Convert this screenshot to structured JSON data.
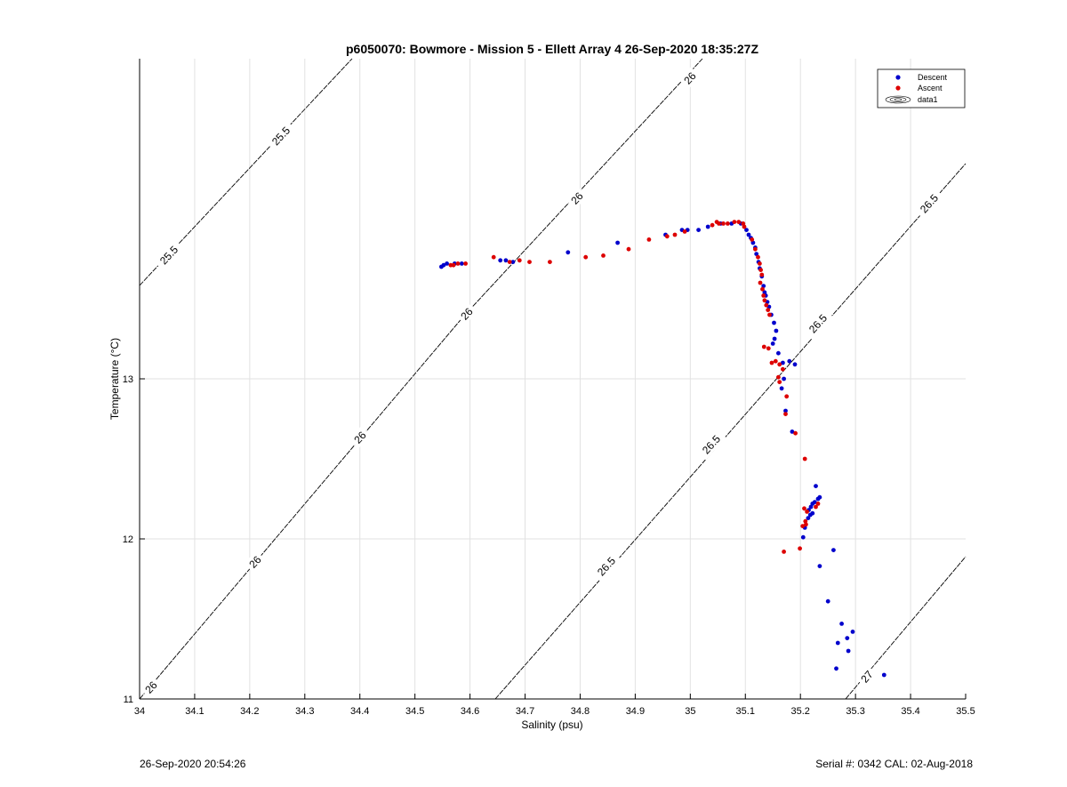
{
  "chart_data": {
    "type": "scatter",
    "title": "p6050070: Bowmore - Mission 5 - Ellett Array 4 26-Sep-2020 18:35:27Z",
    "xlabel": "Salinity (psu)",
    "ylabel": "Temperature (°C)",
    "xlim": [
      34,
      35.5
    ],
    "ylim": [
      11,
      15
    ],
    "x_ticks": [
      34,
      34.1,
      34.2,
      34.3,
      34.4,
      34.5,
      34.6,
      34.7,
      34.8,
      34.9,
      35,
      35.1,
      35.2,
      35.3,
      35.4,
      35.5
    ],
    "x_tick_labels": [
      "34",
      "34.1",
      "34.2",
      "34.3",
      "34.4",
      "34.5",
      "34.6",
      "34.7",
      "34.8",
      "34.9",
      "35",
      "35.1",
      "35.2",
      "35.3",
      "35.4",
      "35.5"
    ],
    "y_ticks": [
      11,
      12,
      13
    ],
    "y_tick_labels": [
      "11",
      "12",
      "13"
    ],
    "grid": true,
    "legend_position": "top-right",
    "legend": [
      {
        "label": "Descent",
        "color": "#0000cc",
        "marker": "dot"
      },
      {
        "label": "Ascent",
        "color": "#dd0000",
        "marker": "dot"
      },
      {
        "label": "data1",
        "color": "#000000",
        "marker": "contour"
      }
    ],
    "series": [
      {
        "name": "Descent",
        "color": "#0000cc",
        "points": [
          [
            34.548,
            13.7
          ],
          [
            34.552,
            13.71
          ],
          [
            34.558,
            13.72
          ],
          [
            34.572,
            13.72
          ],
          [
            34.585,
            13.72
          ],
          [
            34.655,
            13.74
          ],
          [
            34.665,
            13.74
          ],
          [
            34.678,
            13.73
          ],
          [
            34.778,
            13.79
          ],
          [
            34.868,
            13.85
          ],
          [
            34.955,
            13.9
          ],
          [
            34.985,
            13.93
          ],
          [
            34.995,
            13.93
          ],
          [
            35.015,
            13.93
          ],
          [
            35.032,
            13.95
          ],
          [
            35.055,
            13.97
          ],
          [
            35.075,
            13.97
          ],
          [
            35.092,
            13.97
          ],
          [
            35.102,
            13.93
          ],
          [
            35.106,
            13.9
          ],
          [
            35.11,
            13.88
          ],
          [
            35.114,
            13.85
          ],
          [
            35.118,
            13.82
          ],
          [
            35.12,
            13.78
          ],
          [
            35.124,
            13.73
          ],
          [
            35.126,
            13.69
          ],
          [
            35.13,
            13.64
          ],
          [
            35.133,
            13.58
          ],
          [
            35.135,
            13.54
          ],
          [
            35.137,
            13.52
          ],
          [
            35.14,
            13.48
          ],
          [
            35.143,
            13.45
          ],
          [
            35.147,
            13.4
          ],
          [
            35.152,
            13.35
          ],
          [
            35.156,
            13.3
          ],
          [
            35.153,
            13.25
          ],
          [
            35.15,
            13.22
          ],
          [
            35.16,
            13.16
          ],
          [
            35.168,
            13.1
          ],
          [
            35.18,
            13.11
          ],
          [
            35.19,
            13.09
          ],
          [
            35.17,
            13.0
          ],
          [
            35.166,
            12.94
          ],
          [
            35.173,
            12.8
          ],
          [
            35.185,
            12.67
          ],
          [
            35.228,
            12.33
          ],
          [
            35.235,
            12.26
          ],
          [
            35.232,
            12.25
          ],
          [
            35.226,
            12.23
          ],
          [
            35.222,
            12.22
          ],
          [
            35.219,
            12.2
          ],
          [
            35.215,
            12.18
          ],
          [
            35.222,
            12.16
          ],
          [
            35.218,
            12.15
          ],
          [
            35.214,
            12.13
          ],
          [
            35.208,
            12.07
          ],
          [
            35.205,
            12.01
          ],
          [
            35.26,
            11.93
          ],
          [
            35.235,
            11.83
          ],
          [
            35.25,
            11.61
          ],
          [
            35.275,
            11.47
          ],
          [
            35.295,
            11.42
          ],
          [
            35.285,
            11.38
          ],
          [
            35.268,
            11.35
          ],
          [
            35.287,
            11.3
          ],
          [
            35.265,
            11.19
          ],
          [
            35.352,
            11.15
          ]
        ]
      },
      {
        "name": "Ascent",
        "color": "#dd0000",
        "points": [
          [
            34.565,
            13.71
          ],
          [
            34.57,
            13.71
          ],
          [
            34.578,
            13.72
          ],
          [
            34.592,
            13.72
          ],
          [
            34.643,
            13.76
          ],
          [
            34.672,
            13.73
          ],
          [
            34.69,
            13.74
          ],
          [
            34.708,
            13.73
          ],
          [
            34.745,
            13.73
          ],
          [
            34.81,
            13.76
          ],
          [
            34.842,
            13.77
          ],
          [
            34.888,
            13.81
          ],
          [
            34.925,
            13.87
          ],
          [
            34.958,
            13.89
          ],
          [
            34.972,
            13.9
          ],
          [
            34.99,
            13.92
          ],
          [
            35.04,
            13.96
          ],
          [
            35.048,
            13.98
          ],
          [
            35.052,
            13.97
          ],
          [
            35.06,
            13.97
          ],
          [
            35.068,
            13.97
          ],
          [
            35.08,
            13.98
          ],
          [
            35.088,
            13.98
          ],
          [
            35.096,
            13.97
          ],
          [
            35.098,
            13.95
          ],
          [
            35.112,
            13.87
          ],
          [
            35.118,
            13.81
          ],
          [
            35.123,
            13.76
          ],
          [
            35.126,
            13.72
          ],
          [
            35.128,
            13.68
          ],
          [
            35.13,
            13.65
          ],
          [
            35.127,
            13.6
          ],
          [
            35.131,
            13.56
          ],
          [
            35.133,
            13.52
          ],
          [
            35.135,
            13.49
          ],
          [
            35.138,
            13.46
          ],
          [
            35.141,
            13.43
          ],
          [
            35.144,
            13.4
          ],
          [
            35.134,
            13.2
          ],
          [
            35.142,
            13.19
          ],
          [
            35.148,
            13.1
          ],
          [
            35.155,
            13.11
          ],
          [
            35.162,
            13.09
          ],
          [
            35.168,
            13.06
          ],
          [
            35.16,
            13.01
          ],
          [
            35.162,
            12.98
          ],
          [
            35.175,
            12.89
          ],
          [
            35.173,
            12.78
          ],
          [
            35.191,
            12.66
          ],
          [
            35.208,
            12.5
          ],
          [
            35.232,
            12.22
          ],
          [
            35.228,
            12.2
          ],
          [
            35.207,
            12.19
          ],
          [
            35.212,
            12.17
          ],
          [
            35.209,
            12.11
          ],
          [
            35.204,
            12.08
          ],
          [
            35.21,
            12.09
          ],
          [
            35.199,
            11.94
          ],
          [
            35.17,
            11.92
          ]
        ]
      }
    ],
    "isopycnal_contours": [
      {
        "level": "25.5",
        "labels": [
          "25.5",
          "25.5"
        ]
      },
      {
        "level": "26",
        "labels": [
          "26",
          "26",
          "26",
          "26",
          "26",
          "26"
        ]
      },
      {
        "level": "26.5",
        "labels": [
          "26.5",
          "26.5",
          "26.5",
          "26.5"
        ]
      },
      {
        "level": "27",
        "labels": [
          "27"
        ]
      }
    ]
  },
  "footer": {
    "timestamp": "26-Sep-2020 20:54:26",
    "serial_cal": "Serial #: 0342  CAL: 02-Aug-2018"
  }
}
